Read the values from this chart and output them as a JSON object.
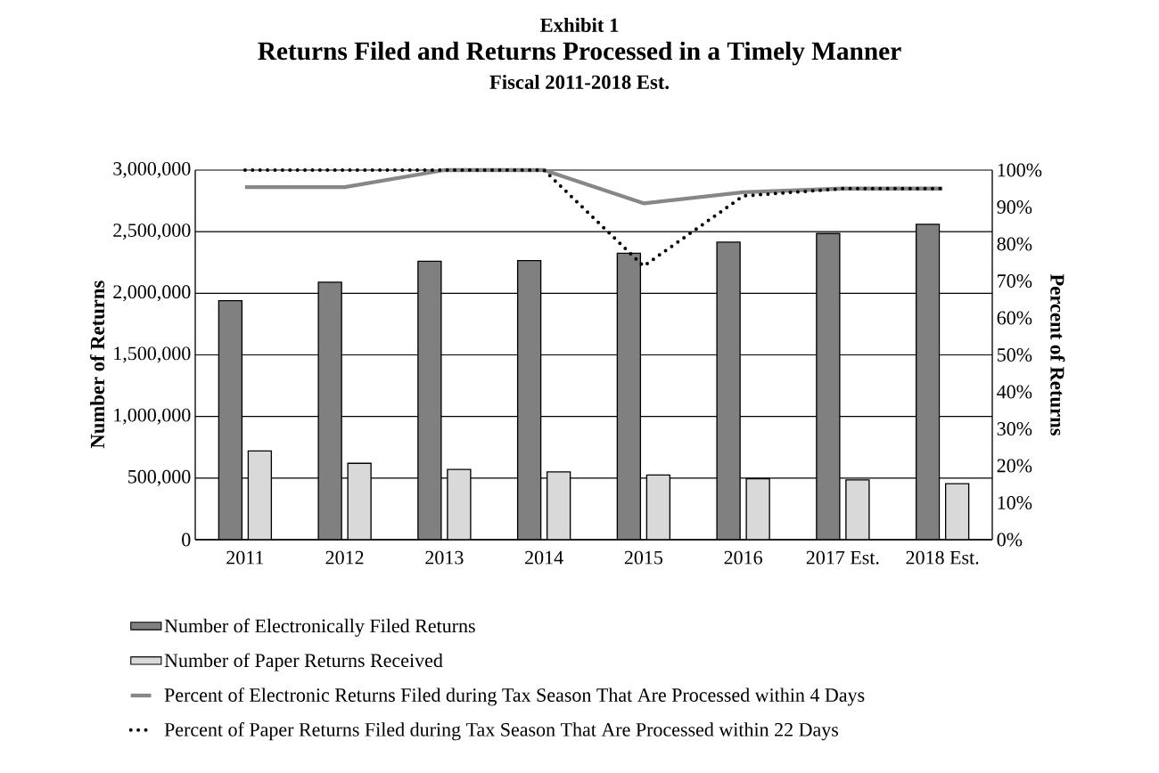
{
  "chart_data": {
    "type": "bar",
    "annotations": [
      "Exhibit 1"
    ],
    "title": "Returns Filed and Returns Processed in a Timely Manner",
    "subtitle": "Fiscal 2011-2018 Est.",
    "ylabel": "Number of Returns",
    "y2label": "Percent of Returns",
    "categories": [
      "2011",
      "2012",
      "2013",
      "2014",
      "2015",
      "2016",
      "2017 Est.",
      "2018 Est."
    ],
    "series": [
      {
        "name": "Number of Electronically Filed Returns",
        "color": "#808080",
        "values": [
          1940000,
          2090000,
          2260000,
          2265000,
          2325000,
          2415000,
          2485000,
          2560000
        ]
      },
      {
        "name": "Number of Paper Returns Received",
        "color": "#d9d9d9",
        "values": [
          720000,
          620000,
          570000,
          550000,
          525000,
          495000,
          485000,
          455000
        ]
      },
      {
        "name": "Percent of Electronic Returns Filed during Tax Season That Are Processed within 4 Days",
        "type": "line",
        "axis": "y2",
        "color": "#878787",
        "line_style": "solid",
        "values": [
          95.4,
          95.4,
          100,
          100,
          91,
          94,
          95,
          95
        ]
      },
      {
        "name": "Percent of Paper Returns Filed during Tax Season That Are Processed within 22 Days",
        "type": "line",
        "axis": "y2",
        "color": "#000000",
        "line_style": "dotted",
        "values": [
          100,
          100,
          100,
          100,
          74,
          93,
          95,
          95
        ]
      }
    ],
    "ylim": [
      0,
      3000000
    ],
    "yticks": [
      0,
      {
        "value": 500000,
        "label": "500,000"
      },
      {
        "value": 1000000,
        "label": "1,000,000"
      },
      {
        "value": 1500000,
        "label": "1,500,000"
      },
      {
        "value": 2000000,
        "label": "2,000,000"
      },
      {
        "value": 2500000,
        "label": "2,500,000"
      },
      {
        "value": 3000000,
        "label": "3,000,000"
      }
    ],
    "y2lim": [
      0,
      100
    ],
    "y2ticks": [
      {
        "value": 0,
        "label": "0%"
      },
      {
        "value": 10,
        "label": "10%"
      },
      {
        "value": 20,
        "label": "20%"
      },
      {
        "value": 30,
        "label": "30%"
      },
      {
        "value": 40,
        "label": "40%"
      },
      {
        "value": 50,
        "label": "50%"
      },
      {
        "value": 60,
        "label": "60%"
      },
      {
        "value": 70,
        "label": "70%"
      },
      {
        "value": 80,
        "label": "80%"
      },
      {
        "value": 90,
        "label": "90%"
      },
      {
        "value": 100,
        "label": "100%"
      }
    ],
    "grid": "y",
    "legend": "bottom",
    "marker": "none"
  }
}
